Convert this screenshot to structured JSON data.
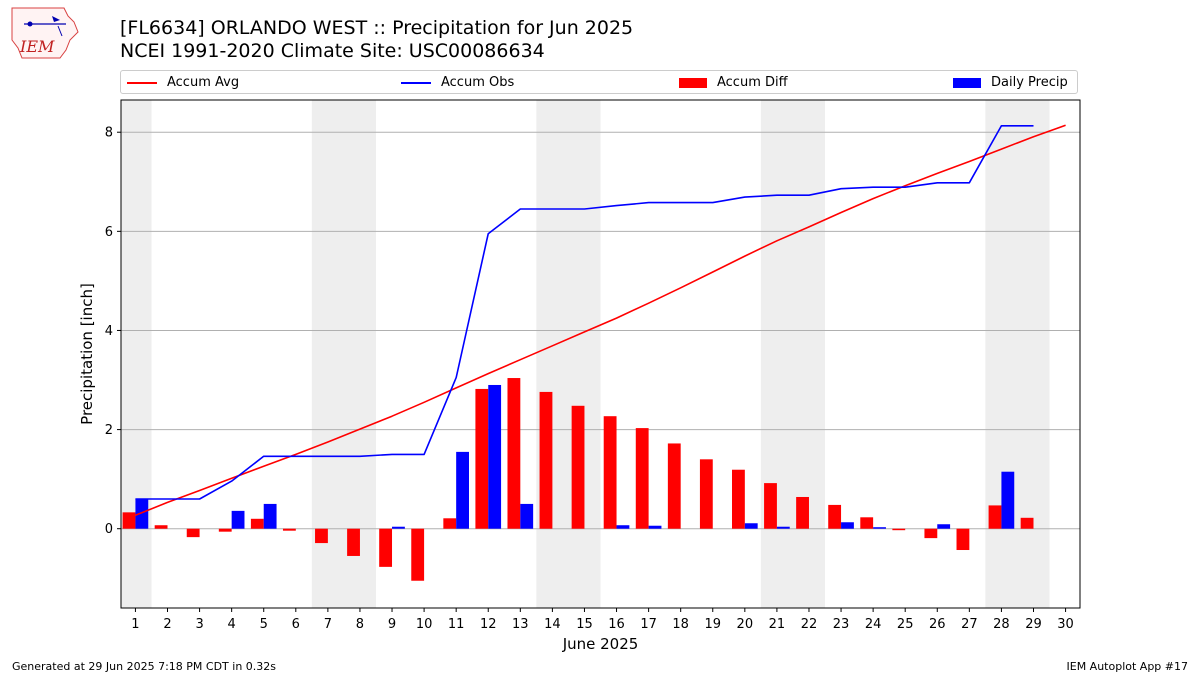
{
  "title_line1": "[FL6634] ORLANDO WEST :: Precipitation for Jun 2025",
  "title_line2": "NCEI 1991-2020 Climate Site: USC00086634",
  "logo_text": "IEM",
  "footer_left": "Generated at 29 Jun 2025 7:18 PM CDT in 0.32s",
  "footer_right": "IEM Autoplot App #17",
  "colors": {
    "avg": "#ff0000",
    "obs": "#0000ff",
    "diff": "#ff0000",
    "daily": "#0000ff",
    "weekend": "#eeeeee",
    "grid": "#b0b0b0"
  },
  "chart_data": {
    "type": "bar",
    "xlabel": "June 2025",
    "ylabel": "Precipitation [inch]",
    "x": [
      1,
      2,
      3,
      4,
      5,
      6,
      7,
      8,
      9,
      10,
      11,
      12,
      13,
      14,
      15,
      16,
      17,
      18,
      19,
      20,
      21,
      22,
      23,
      24,
      25,
      26,
      27,
      28,
      29,
      30
    ],
    "ylim": [
      -1.6,
      8.65
    ],
    "yticks": [
      0,
      2,
      4,
      6,
      8
    ],
    "grid": "horizontal",
    "legend_position": "top",
    "weekend_shading": [
      [
        0.5,
        1.5
      ],
      [
        6.5,
        8.5
      ],
      [
        13.5,
        15.5
      ],
      [
        20.5,
        22.5
      ],
      [
        27.5,
        29.5
      ]
    ],
    "series": [
      {
        "name": "Accum Avg",
        "kind": "line",
        "values": [
          0.27,
          0.53,
          0.77,
          1.02,
          1.26,
          1.5,
          1.75,
          2.01,
          2.27,
          2.55,
          2.84,
          3.13,
          3.41,
          3.69,
          3.97,
          4.25,
          4.55,
          4.86,
          5.18,
          5.5,
          5.81,
          6.09,
          6.38,
          6.66,
          6.92,
          7.17,
          7.41,
          7.66,
          7.91,
          8.14
        ]
      },
      {
        "name": "Accum Obs",
        "kind": "line",
        "values": [
          0.6,
          0.6,
          0.6,
          0.96,
          1.46,
          1.46,
          1.46,
          1.46,
          1.5,
          1.5,
          3.05,
          5.95,
          6.45,
          6.45,
          6.45,
          6.52,
          6.58,
          6.58,
          6.58,
          6.69,
          6.73,
          6.73,
          6.86,
          6.89,
          6.89,
          6.98,
          6.98,
          8.13,
          8.13,
          null
        ]
      },
      {
        "name": "Accum Diff",
        "kind": "bar",
        "values": [
          0.33,
          0.07,
          -0.17,
          -0.06,
          0.2,
          -0.04,
          -0.29,
          -0.55,
          -0.77,
          -1.05,
          0.21,
          2.82,
          3.04,
          2.76,
          2.48,
          2.27,
          2.03,
          1.72,
          1.4,
          1.19,
          0.92,
          0.64,
          0.48,
          0.23,
          -0.03,
          -0.19,
          -0.43,
          0.47,
          0.22,
          null
        ]
      },
      {
        "name": "Daily Precip",
        "kind": "bar",
        "values": [
          0.6,
          0,
          0,
          0.36,
          0.5,
          0,
          0,
          0,
          0.04,
          0,
          1.55,
          2.9,
          0.5,
          0,
          0,
          0.07,
          0.06,
          0,
          0,
          0.11,
          0.04,
          0,
          0.13,
          0.03,
          0,
          0.09,
          0,
          1.15,
          0,
          null
        ]
      }
    ]
  }
}
